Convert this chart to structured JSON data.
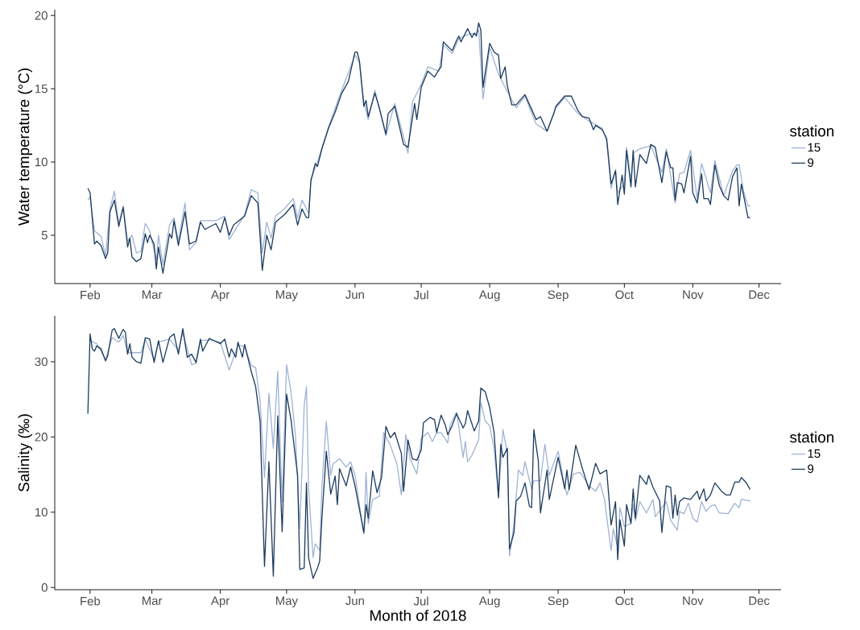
{
  "chart_data": [
    {
      "type": "line",
      "ylabel": "Water temperature (°C)",
      "legend_title": "station",
      "legend": "right",
      "xlim": [
        "2018-01-16",
        "2018-12-11"
      ],
      "ylim": [
        1.7,
        20.4
      ],
      "yticks": [
        5,
        10,
        15,
        20
      ],
      "xticks": [
        {
          "value": "2018-02-01",
          "label": "Feb"
        },
        {
          "value": "2018-03-01",
          "label": "Mar"
        },
        {
          "value": "2018-04-01",
          "label": "Apr"
        },
        {
          "value": "2018-05-01",
          "label": "May"
        },
        {
          "value": "2018-06-01",
          "label": "Jun"
        },
        {
          "value": "2018-07-01",
          "label": "Jul"
        },
        {
          "value": "2018-08-01",
          "label": "Aug"
        },
        {
          "value": "2018-09-01",
          "label": "Sep"
        },
        {
          "value": "2018-10-01",
          "label": "Oct"
        },
        {
          "value": "2018-11-01",
          "label": "Nov"
        },
        {
          "value": "2018-12-01",
          "label": "Dec"
        }
      ],
      "series": [
        {
          "name": "15",
          "color": "#9fb3d4",
          "x": [
            "2018-01-31",
            "2018-02-01",
            "2018-02-03",
            "2018-02-06",
            "2018-02-08",
            "2018-02-10",
            "2018-02-12",
            "2018-02-14",
            "2018-02-16",
            "2018-02-18",
            "2018-02-20",
            "2018-02-22",
            "2018-02-24",
            "2018-02-26",
            "2018-02-28",
            "2018-03-03",
            "2018-03-04",
            "2018-03-06",
            "2018-03-09",
            "2018-03-11",
            "2018-03-13",
            "2018-03-16",
            "2018-03-18",
            "2018-03-21",
            "2018-03-23",
            "2018-03-30",
            "2018-04-03",
            "2018-04-05",
            "2018-04-12",
            "2018-04-15",
            "2018-04-18",
            "2018-04-20",
            "2018-04-22",
            "2018-04-24",
            "2018-04-26",
            "2018-04-30",
            "2018-05-04",
            "2018-05-06",
            "2018-05-08",
            "2018-05-11",
            "2018-05-12",
            "2018-05-15",
            "2018-05-20",
            "2018-05-26",
            "2018-06-01",
            "2018-06-03",
            "2018-06-05",
            "2018-06-07",
            "2018-06-10",
            "2018-06-15",
            "2018-06-19",
            "2018-06-25",
            "2018-06-27",
            "2018-07-01",
            "2018-07-04",
            "2018-07-09",
            "2018-07-11",
            "2018-07-15",
            "2018-07-18",
            "2018-07-22",
            "2018-07-26",
            "2018-07-27",
            "2018-07-29",
            "2018-08-01",
            "2018-08-05",
            "2018-08-09",
            "2018-08-13",
            "2018-08-17",
            "2018-08-22",
            "2018-08-27",
            "2018-08-31",
            "2018-09-04",
            "2018-09-10",
            "2018-09-15",
            "2018-09-21",
            "2018-09-23",
            "2018-09-25",
            "2018-09-27",
            "2018-09-28",
            "2018-10-01",
            "2018-10-02",
            "2018-10-04",
            "2018-10-05",
            "2018-10-08",
            "2018-10-13",
            "2018-10-18",
            "2018-10-20",
            "2018-10-24",
            "2018-10-26",
            "2018-10-28",
            "2018-10-31",
            "2018-11-03",
            "2018-11-05",
            "2018-11-09",
            "2018-11-11",
            "2018-11-15",
            "2018-11-19",
            "2018-11-21",
            "2018-11-22",
            "2018-11-24",
            "2018-11-26",
            "2018-11-27"
          ],
          "values": [
            7.4,
            7.6,
            5.3,
            4.9,
            3.6,
            6.8,
            8.0,
            5.8,
            7.0,
            4.6,
            5.0,
            3.8,
            3.9,
            5.8,
            5.3,
            3.3,
            5.0,
            3.0,
            5.7,
            6.2,
            4.6,
            7.2,
            4.0,
            4.5,
            6.0,
            6.0,
            6.3,
            4.7,
            6.4,
            8.1,
            7.9,
            3.8,
            5.9,
            4.8,
            6.3,
            6.8,
            7.5,
            6.2,
            7.4,
            6.5,
            8.8,
            10.0,
            12.4,
            14.9,
            17.3,
            16.8,
            14.1,
            12.9,
            14.9,
            11.8,
            14.0,
            10.6,
            14.1,
            15.3,
            16.5,
            16.2,
            18.0,
            17.4,
            18.4,
            18.7,
            18.8,
            19.0,
            14.3,
            17.8,
            16.0,
            14.8,
            13.7,
            14.5,
            12.6,
            12.1,
            13.7,
            14.4,
            13.3,
            12.8,
            12.3,
            11.4,
            8.2,
            9.5,
            7.9,
            8.5,
            11.0,
            8.7,
            10.6,
            10.9,
            11.1,
            9.3,
            10.9,
            7.2,
            9.2,
            9.3,
            10.8,
            7.5,
            9.9,
            7.9,
            10.1,
            7.7,
            9.4,
            9.8,
            9.8,
            8.0,
            7.0,
            7.0
          ]
        },
        {
          "name": "9",
          "color": "#1b3a5c",
          "x": [
            "2018-01-31",
            "2018-02-01",
            "2018-02-03",
            "2018-02-04",
            "2018-02-06",
            "2018-02-08",
            "2018-02-09",
            "2018-02-10",
            "2018-02-12",
            "2018-02-14",
            "2018-02-16",
            "2018-02-18",
            "2018-02-19",
            "2018-02-20",
            "2018-02-22",
            "2018-02-24",
            "2018-02-26",
            "2018-02-27",
            "2018-02-28",
            "2018-03-02",
            "2018-03-03",
            "2018-03-04",
            "2018-03-06",
            "2018-03-09",
            "2018-03-10",
            "2018-03-11",
            "2018-03-13",
            "2018-03-16",
            "2018-03-18",
            "2018-03-21",
            "2018-03-23",
            "2018-03-25",
            "2018-03-30",
            "2018-04-01",
            "2018-04-03",
            "2018-04-05",
            "2018-04-07",
            "2018-04-12",
            "2018-04-15",
            "2018-04-18",
            "2018-04-20",
            "2018-04-22",
            "2018-04-24",
            "2018-04-26",
            "2018-04-30",
            "2018-05-04",
            "2018-05-06",
            "2018-05-08",
            "2018-05-10",
            "2018-05-11",
            "2018-05-12",
            "2018-05-14",
            "2018-05-15",
            "2018-05-17",
            "2018-05-20",
            "2018-05-23",
            "2018-05-26",
            "2018-05-29",
            "2018-06-01",
            "2018-06-02",
            "2018-06-03",
            "2018-06-05",
            "2018-06-06",
            "2018-06-07",
            "2018-06-10",
            "2018-06-12",
            "2018-06-15",
            "2018-06-16",
            "2018-06-19",
            "2018-06-23",
            "2018-06-25",
            "2018-06-28",
            "2018-06-29",
            "2018-07-01",
            "2018-07-04",
            "2018-07-07",
            "2018-07-09",
            "2018-07-10",
            "2018-07-11",
            "2018-07-15",
            "2018-07-17",
            "2018-07-18",
            "2018-07-19",
            "2018-07-22",
            "2018-07-24",
            "2018-07-25",
            "2018-07-26",
            "2018-07-27",
            "2018-07-28",
            "2018-07-29",
            "2018-08-01",
            "2018-08-03",
            "2018-08-05",
            "2018-08-06",
            "2018-08-08",
            "2018-08-09",
            "2018-08-11",
            "2018-08-13",
            "2018-08-17",
            "2018-08-20",
            "2018-08-22",
            "2018-08-24",
            "2018-08-27",
            "2018-08-30",
            "2018-08-31",
            "2018-09-04",
            "2018-09-07",
            "2018-09-10",
            "2018-09-12",
            "2018-09-15",
            "2018-09-17",
            "2018-09-18",
            "2018-09-21",
            "2018-09-23",
            "2018-09-25",
            "2018-09-27",
            "2018-09-28",
            "2018-09-30",
            "2018-10-01",
            "2018-10-02",
            "2018-10-04",
            "2018-10-05",
            "2018-10-06",
            "2018-10-08",
            "2018-10-11",
            "2018-10-13",
            "2018-10-15",
            "2018-10-18",
            "2018-10-20",
            "2018-10-22",
            "2018-10-23",
            "2018-10-24",
            "2018-10-25",
            "2018-10-27",
            "2018-10-28",
            "2018-10-31",
            "2018-11-01",
            "2018-11-03",
            "2018-11-05",
            "2018-11-06",
            "2018-11-08",
            "2018-11-09",
            "2018-11-11",
            "2018-11-13",
            "2018-11-15",
            "2018-11-17",
            "2018-11-19",
            "2018-11-21",
            "2018-11-22",
            "2018-11-23",
            "2018-11-26",
            "2018-11-27"
          ],
          "values": [
            8.2,
            7.9,
            4.4,
            4.6,
            4.3,
            3.4,
            3.8,
            6.6,
            7.4,
            5.6,
            6.9,
            4.2,
            4.8,
            3.5,
            3.2,
            3.4,
            5.1,
            4.5,
            5.0,
            4.4,
            2.7,
            4.2,
            2.4,
            5.1,
            4.8,
            6.0,
            4.3,
            6.6,
            4.4,
            4.6,
            5.9,
            5.4,
            5.8,
            5.2,
            6.2,
            5.0,
            5.7,
            6.3,
            7.7,
            7.2,
            2.6,
            5.0,
            4.0,
            5.9,
            6.4,
            7.1,
            5.7,
            6.8,
            6.2,
            6.2,
            8.7,
            9.9,
            9.7,
            10.9,
            12.3,
            13.4,
            14.7,
            15.5,
            17.5,
            17.5,
            16.9,
            13.8,
            14.2,
            13.1,
            14.7,
            13.7,
            11.9,
            13.3,
            13.8,
            11.2,
            11.0,
            14.0,
            12.9,
            15.1,
            16.2,
            15.8,
            16.3,
            16.5,
            18.2,
            17.6,
            18.3,
            18.6,
            18.2,
            19.1,
            18.5,
            18.8,
            18.6,
            19.5,
            19.0,
            15.1,
            18.1,
            17.5,
            17.3,
            15.7,
            16.5,
            15.2,
            13.9,
            13.9,
            14.6,
            13.6,
            12.9,
            13.1,
            12.1,
            13.3,
            13.8,
            14.5,
            14.5,
            13.5,
            13.1,
            13.0,
            12.2,
            12.5,
            12.2,
            11.6,
            8.5,
            9.4,
            7.1,
            9.1,
            7.8,
            10.8,
            8.3,
            10.8,
            8.3,
            10.5,
            9.9,
            11.2,
            11.0,
            8.6,
            10.7,
            9.6,
            9.6,
            7.4,
            8.6,
            8.5,
            7.9,
            10.4,
            7.9,
            7.2,
            9.2,
            7.5,
            7.5,
            7.1,
            9.8,
            8.4,
            7.7,
            7.4,
            9.0,
            9.6,
            7.0,
            8.5,
            6.2,
            6.2
          ]
        }
      ]
    },
    {
      "type": "line",
      "xlabel": "Month of 2018",
      "ylabel": "Salinity (‰)",
      "legend_title": "station",
      "legend": "right",
      "xlim": [
        "2018-01-16",
        "2018-12-11"
      ],
      "ylim": [
        -0.3,
        36.1
      ],
      "yticks": [
        0,
        10,
        20,
        30
      ],
      "xticks": [
        {
          "value": "2018-02-01",
          "label": "Feb"
        },
        {
          "value": "2018-03-01",
          "label": "Mar"
        },
        {
          "value": "2018-04-01",
          "label": "Apr"
        },
        {
          "value": "2018-05-01",
          "label": "May"
        },
        {
          "value": "2018-06-01",
          "label": "Jun"
        },
        {
          "value": "2018-07-01",
          "label": "Jul"
        },
        {
          "value": "2018-08-01",
          "label": "Aug"
        },
        {
          "value": "2018-09-01",
          "label": "Sep"
        },
        {
          "value": "2018-10-01",
          "label": "Oct"
        },
        {
          "value": "2018-11-01",
          "label": "Nov"
        },
        {
          "value": "2018-12-01",
          "label": "Dec"
        }
      ],
      "series": [
        {
          "name": "15",
          "color": "#9fb3d4",
          "x": [
            "2018-02-01",
            "2018-02-04",
            "2018-02-08",
            "2018-02-11",
            "2018-02-14",
            "2018-02-16",
            "2018-02-18",
            "2018-02-20",
            "2018-02-24",
            "2018-02-26",
            "2018-03-02",
            "2018-03-04",
            "2018-03-09",
            "2018-03-13",
            "2018-03-15",
            "2018-03-19",
            "2018-03-21",
            "2018-03-23",
            "2018-03-27",
            "2018-04-01",
            "2018-04-05",
            "2018-04-09",
            "2018-04-12",
            "2018-04-15",
            "2018-04-17",
            "2018-04-19",
            "2018-04-21",
            "2018-04-23",
            "2018-04-25",
            "2018-04-27",
            "2018-04-29",
            "2018-05-01",
            "2018-05-03",
            "2018-05-05",
            "2018-05-07",
            "2018-05-09",
            "2018-05-10",
            "2018-05-11",
            "2018-05-13",
            "2018-05-14",
            "2018-05-16",
            "2018-05-17",
            "2018-05-19",
            "2018-05-21",
            "2018-05-22",
            "2018-05-25",
            "2018-05-28",
            "2018-05-30",
            "2018-06-01",
            "2018-06-05",
            "2018-06-06",
            "2018-06-07",
            "2018-06-09",
            "2018-06-12",
            "2018-06-14",
            "2018-06-17",
            "2018-06-20",
            "2018-06-22",
            "2018-06-24",
            "2018-06-26",
            "2018-06-29",
            "2018-07-01",
            "2018-07-04",
            "2018-07-06",
            "2018-07-08",
            "2018-07-10",
            "2018-07-13",
            "2018-07-14",
            "2018-07-17",
            "2018-07-20",
            "2018-07-21",
            "2018-07-22",
            "2018-07-24",
            "2018-07-27",
            "2018-07-28",
            "2018-07-30",
            "2018-08-01",
            "2018-08-03",
            "2018-08-05",
            "2018-08-07",
            "2018-08-09",
            "2018-08-10",
            "2018-08-12",
            "2018-08-14",
            "2018-08-16",
            "2018-08-17",
            "2018-08-20",
            "2018-08-21",
            "2018-08-24",
            "2018-08-26",
            "2018-08-28",
            "2018-09-01",
            "2018-09-04",
            "2018-09-05",
            "2018-09-08",
            "2018-09-11",
            "2018-09-15",
            "2018-09-18",
            "2018-09-20",
            "2018-09-22",
            "2018-09-25",
            "2018-09-26",
            "2018-09-28",
            "2018-09-29",
            "2018-10-01",
            "2018-10-04",
            "2018-10-05",
            "2018-10-06",
            "2018-10-08",
            "2018-10-11",
            "2018-10-14",
            "2018-10-15",
            "2018-10-18",
            "2018-10-20",
            "2018-10-22",
            "2018-10-25",
            "2018-10-26",
            "2018-10-28",
            "2018-10-30",
            "2018-11-01",
            "2018-11-03",
            "2018-11-05",
            "2018-11-07",
            "2018-11-09",
            "2018-11-11",
            "2018-11-13",
            "2018-11-17",
            "2018-11-20",
            "2018-11-22",
            "2018-11-23",
            "2018-11-27"
          ],
          "values": [
            32.8,
            32.4,
            30.3,
            33.2,
            32.6,
            33.5,
            31.2,
            31.2,
            31.2,
            33.0,
            30.3,
            32.6,
            33.0,
            31.5,
            33.8,
            29.6,
            29.8,
            32.8,
            32.9,
            32.6,
            28.9,
            32.2,
            32.0,
            29.5,
            29.2,
            24.8,
            14.6,
            25.8,
            18.5,
            28.7,
            11.4,
            29.6,
            26.0,
            20.3,
            7.8,
            24.2,
            26.7,
            13.1,
            4.0,
            5.8,
            4.9,
            13.3,
            22.1,
            14.9,
            16.4,
            17.1,
            16.0,
            16.7,
            14.9,
            7.1,
            15.3,
            8.5,
            11.7,
            12.1,
            20.6,
            18.9,
            16.4,
            12.3,
            20.3,
            17.1,
            15.1,
            19.8,
            20.6,
            19.4,
            20.5,
            20.6,
            19.2,
            21.5,
            23.3,
            17.3,
            19.4,
            16.7,
            17.6,
            19.6,
            24.6,
            22.1,
            21.5,
            18.5,
            12.1,
            21.0,
            17.8,
            4.2,
            8.5,
            15.6,
            14.9,
            16.7,
            13.0,
            14.2,
            14.2,
            19.0,
            14.9,
            18.1,
            13.5,
            12.3,
            15.1,
            15.3,
            13.5,
            12.8,
            13.9,
            11.7,
            4.9,
            7.8,
            5.3,
            10.6,
            8.1,
            8.5,
            11.0,
            8.9,
            11.4,
            9.9,
            11.7,
            9.4,
            10.6,
            11.4,
            8.9,
            7.6,
            10.1,
            9.8,
            11.2,
            9.2,
            8.7,
            11.4,
            10.1,
            10.8,
            11.0,
            9.9,
            9.8,
            11.2,
            10.6,
            11.7,
            11.5
          ]
        },
        {
          "name": "9",
          "color": "#1b3a5c",
          "x": [
            "2018-01-31",
            "2018-02-01",
            "2018-02-02",
            "2018-02-03",
            "2018-02-04",
            "2018-02-06",
            "2018-02-08",
            "2018-02-09",
            "2018-02-11",
            "2018-02-12",
            "2018-02-14",
            "2018-02-16",
            "2018-02-17",
            "2018-02-18",
            "2018-02-19",
            "2018-02-20",
            "2018-02-22",
            "2018-02-24",
            "2018-02-26",
            "2018-02-28",
            "2018-03-02",
            "2018-03-04",
            "2018-03-06",
            "2018-03-09",
            "2018-03-11",
            "2018-03-13",
            "2018-03-15",
            "2018-03-17",
            "2018-03-19",
            "2018-03-21",
            "2018-03-23",
            "2018-03-24",
            "2018-03-27",
            "2018-04-01",
            "2018-04-03",
            "2018-04-05",
            "2018-04-06",
            "2018-04-08",
            "2018-04-09",
            "2018-04-11",
            "2018-04-12",
            "2018-04-15",
            "2018-04-17",
            "2018-04-19",
            "2018-04-21",
            "2018-04-23",
            "2018-04-25",
            "2018-04-27",
            "2018-04-29",
            "2018-05-01",
            "2018-05-03",
            "2018-05-06",
            "2018-05-07",
            "2018-05-09",
            "2018-05-10",
            "2018-05-11",
            "2018-05-13",
            "2018-05-15",
            "2018-05-16",
            "2018-05-17",
            "2018-05-19",
            "2018-05-21",
            "2018-05-23",
            "2018-05-24",
            "2018-05-25",
            "2018-05-28",
            "2018-05-30",
            "2018-06-01",
            "2018-06-05",
            "2018-06-06",
            "2018-06-07",
            "2018-06-09",
            "2018-06-11",
            "2018-06-13",
            "2018-06-15",
            "2018-06-17",
            "2018-06-19",
            "2018-06-22",
            "2018-06-23",
            "2018-06-25",
            "2018-06-27",
            "2018-06-29",
            "2018-07-01",
            "2018-07-02",
            "2018-07-05",
            "2018-07-07",
            "2018-07-08",
            "2018-07-10",
            "2018-07-12",
            "2018-07-13",
            "2018-07-15",
            "2018-07-17",
            "2018-07-20",
            "2018-07-21",
            "2018-07-22",
            "2018-07-25",
            "2018-07-27",
            "2018-07-28",
            "2018-07-30",
            "2018-08-01",
            "2018-08-03",
            "2018-08-05",
            "2018-08-06",
            "2018-08-07",
            "2018-08-09",
            "2018-08-10",
            "2018-08-12",
            "2018-08-13",
            "2018-08-15",
            "2018-08-17",
            "2018-08-19",
            "2018-08-20",
            "2018-08-21",
            "2018-08-23",
            "2018-08-24",
            "2018-08-27",
            "2018-08-28",
            "2018-09-01",
            "2018-09-04",
            "2018-09-05",
            "2018-09-06",
            "2018-09-09",
            "2018-09-12",
            "2018-09-15",
            "2018-09-18",
            "2018-09-20",
            "2018-09-23",
            "2018-09-25",
            "2018-09-27",
            "2018-09-28",
            "2018-09-29",
            "2018-10-01",
            "2018-10-02",
            "2018-10-04",
            "2018-10-05",
            "2018-10-06",
            "2018-10-08",
            "2018-10-11",
            "2018-10-12",
            "2018-10-14",
            "2018-10-17",
            "2018-10-18",
            "2018-10-20",
            "2018-10-22",
            "2018-10-23",
            "2018-10-24",
            "2018-10-25",
            "2018-10-26",
            "2018-10-28",
            "2018-10-31",
            "2018-11-03",
            "2018-11-04",
            "2018-11-06",
            "2018-11-07",
            "2018-11-09",
            "2018-11-11",
            "2018-11-14",
            "2018-11-16",
            "2018-11-18",
            "2018-11-20",
            "2018-11-22",
            "2018-11-23",
            "2018-11-25",
            "2018-11-27"
          ],
          "values": [
            23.1,
            33.7,
            31.7,
            31.4,
            32.1,
            31.7,
            30.1,
            30.8,
            34.2,
            34.4,
            33.1,
            34.3,
            33.9,
            31.0,
            32.4,
            30.6,
            30.0,
            29.8,
            33.2,
            33.0,
            29.9,
            32.8,
            29.9,
            33.2,
            33.7,
            31.0,
            34.4,
            30.6,
            31.0,
            29.9,
            33.0,
            31.4,
            33.1,
            32.4,
            33.0,
            30.6,
            31.7,
            30.6,
            32.6,
            30.6,
            32.3,
            28.7,
            26.7,
            22.1,
            2.8,
            16.7,
            1.5,
            22.8,
            7.4,
            25.7,
            22.3,
            14.9,
            2.4,
            2.6,
            13.9,
            3.9,
            1.2,
            2.6,
            3.5,
            9.2,
            18.1,
            12.4,
            14.8,
            11.0,
            15.8,
            13.5,
            16.0,
            13.5,
            7.3,
            11.0,
            9.2,
            15.5,
            12.6,
            14.6,
            21.4,
            19.9,
            20.6,
            17.8,
            12.8,
            19.6,
            17.1,
            16.9,
            18.3,
            21.9,
            22.6,
            22.3,
            20.6,
            22.9,
            21.5,
            20.3,
            21.5,
            23.1,
            21.2,
            21.8,
            23.5,
            20.8,
            22.1,
            26.5,
            26.0,
            23.9,
            20.6,
            11.9,
            19.0,
            17.3,
            18.5,
            5.1,
            7.3,
            11.5,
            12.1,
            13.9,
            10.8,
            10.6,
            21.0,
            16.9,
            9.9,
            15.6,
            11.7,
            17.3,
            13.1,
            15.6,
            13.0,
            18.9,
            15.8,
            13.0,
            16.5,
            15.1,
            15.6,
            8.3,
            11.4,
            3.7,
            9.0,
            5.5,
            11.0,
            8.5,
            13.1,
            9.2,
            14.9,
            13.7,
            14.9,
            13.3,
            11.5,
            7.3,
            13.5,
            13.3,
            9.2,
            12.3,
            9.6,
            11.4,
            11.9,
            11.7,
            12.8,
            11.7,
            13.1,
            11.5,
            12.3,
            13.9,
            12.8,
            12.3,
            12.3,
            14.0,
            14.0,
            14.6,
            14.0,
            13.0
          ]
        }
      ]
    }
  ]
}
